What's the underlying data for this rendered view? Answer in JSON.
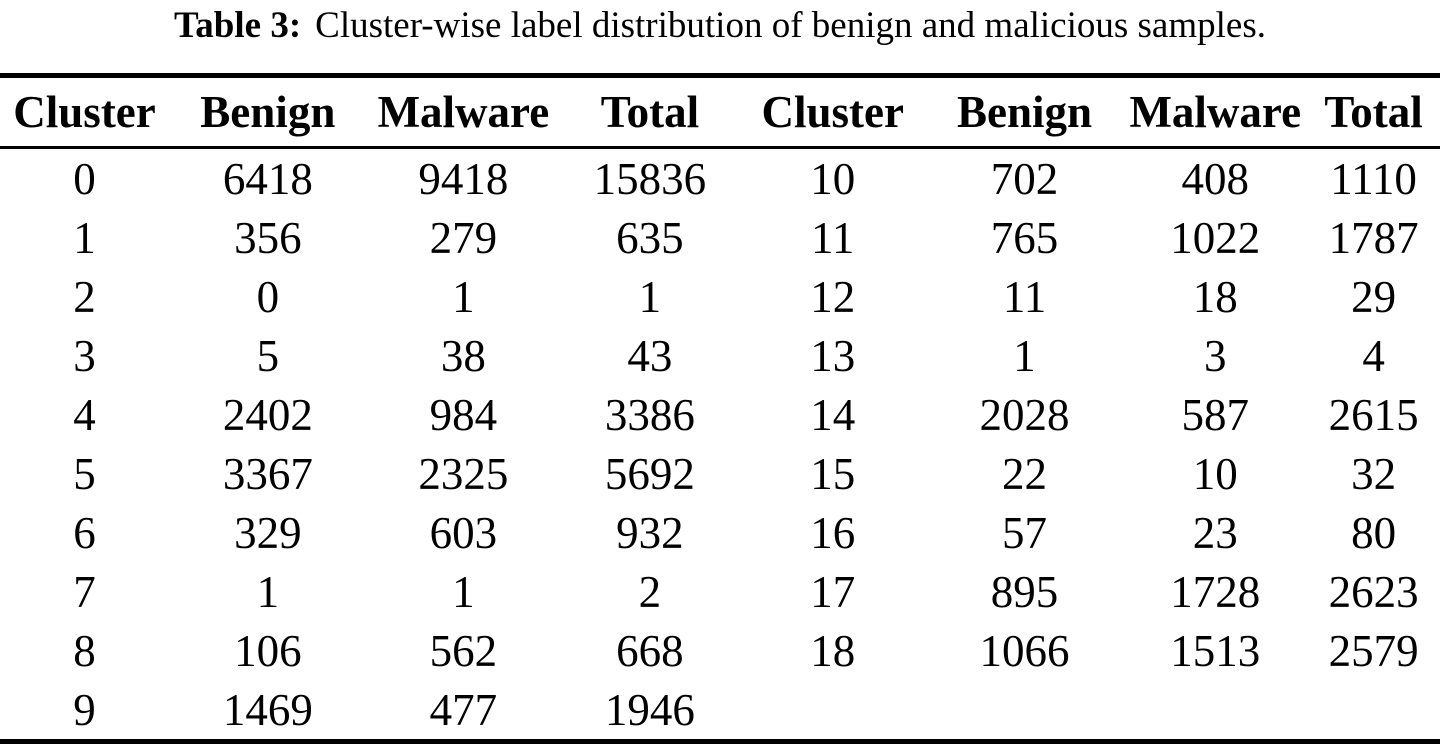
{
  "caption": {
    "label": "Table 3:",
    "text": "Cluster-wise label distribution of benign and malicious samples."
  },
  "table": {
    "columns": [
      "Cluster",
      "Benign",
      "Malware",
      "Total",
      "Cluster",
      "Benign",
      "Malware",
      "Total"
    ],
    "rows": [
      [
        "0",
        "6418",
        "9418",
        "15836",
        "10",
        "702",
        "408",
        "1110"
      ],
      [
        "1",
        "356",
        "279",
        "635",
        "11",
        "765",
        "1022",
        "1787"
      ],
      [
        "2",
        "0",
        "1",
        "1",
        "12",
        "11",
        "18",
        "29"
      ],
      [
        "3",
        "5",
        "38",
        "43",
        "13",
        "1",
        "3",
        "4"
      ],
      [
        "4",
        "2402",
        "984",
        "3386",
        "14",
        "2028",
        "587",
        "2615"
      ],
      [
        "5",
        "3367",
        "2325",
        "5692",
        "15",
        "22",
        "10",
        "32"
      ],
      [
        "6",
        "329",
        "603",
        "932",
        "16",
        "57",
        "23",
        "80"
      ],
      [
        "7",
        "1",
        "1",
        "2",
        "17",
        "895",
        "1728",
        "2623"
      ],
      [
        "8",
        "106",
        "562",
        "668",
        "18",
        "1066",
        "1513",
        "2579"
      ],
      [
        "9",
        "1469",
        "477",
        "1946",
        "",
        "",
        "",
        ""
      ]
    ]
  },
  "chart_data": {
    "type": "table",
    "title": "Table 3: Cluster-wise label distribution of benign and malicious samples.",
    "columns": [
      "Cluster",
      "Benign",
      "Malware",
      "Total"
    ],
    "records": [
      {
        "cluster": 0,
        "benign": 6418,
        "malware": 9418,
        "total": 15836
      },
      {
        "cluster": 1,
        "benign": 356,
        "malware": 279,
        "total": 635
      },
      {
        "cluster": 2,
        "benign": 0,
        "malware": 1,
        "total": 1
      },
      {
        "cluster": 3,
        "benign": 5,
        "malware": 38,
        "total": 43
      },
      {
        "cluster": 4,
        "benign": 2402,
        "malware": 984,
        "total": 3386
      },
      {
        "cluster": 5,
        "benign": 3367,
        "malware": 2325,
        "total": 5692
      },
      {
        "cluster": 6,
        "benign": 329,
        "malware": 603,
        "total": 932
      },
      {
        "cluster": 7,
        "benign": 1,
        "malware": 1,
        "total": 2
      },
      {
        "cluster": 8,
        "benign": 106,
        "malware": 562,
        "total": 668
      },
      {
        "cluster": 9,
        "benign": 1469,
        "malware": 477,
        "total": 1946
      },
      {
        "cluster": 10,
        "benign": 702,
        "malware": 408,
        "total": 1110
      },
      {
        "cluster": 11,
        "benign": 765,
        "malware": 1022,
        "total": 1787
      },
      {
        "cluster": 12,
        "benign": 11,
        "malware": 18,
        "total": 29
      },
      {
        "cluster": 13,
        "benign": 1,
        "malware": 3,
        "total": 4
      },
      {
        "cluster": 14,
        "benign": 2028,
        "malware": 587,
        "total": 2615
      },
      {
        "cluster": 15,
        "benign": 22,
        "malware": 10,
        "total": 32
      },
      {
        "cluster": 16,
        "benign": 57,
        "malware": 23,
        "total": 80
      },
      {
        "cluster": 17,
        "benign": 895,
        "malware": 1728,
        "total": 2623
      },
      {
        "cluster": 18,
        "benign": 1066,
        "malware": 1513,
        "total": 2579
      }
    ]
  }
}
